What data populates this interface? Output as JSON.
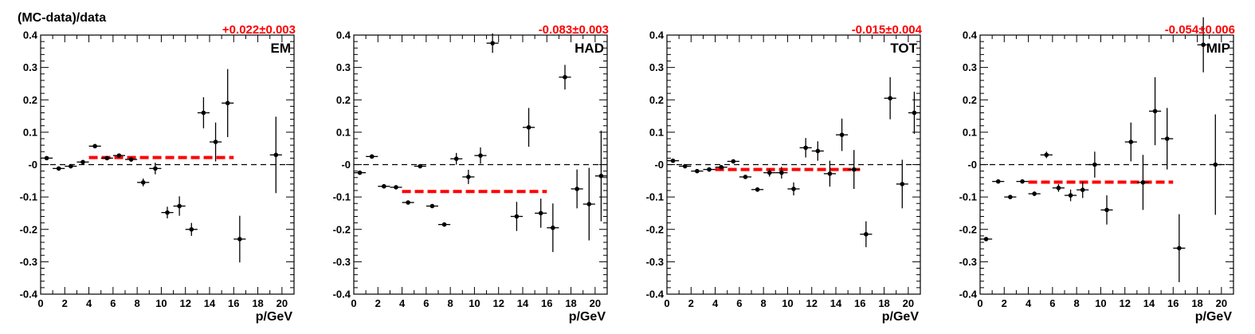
{
  "figure": {
    "title": "(MC-data)/data"
  },
  "chart_data": [
    {
      "type": "scatter",
      "label": "EM",
      "fit_value": "+0.022",
      "fit_error": "0.003",
      "fit_text": "+0.022±0.003",
      "fit_line": {
        "y": 0.022,
        "x_range": [
          4,
          16
        ]
      },
      "xlabel": "p/GeV",
      "ylabel": "",
      "xlim": [
        0,
        21
      ],
      "ylim": [
        -0.4,
        0.4
      ],
      "xticks": [
        "0",
        "2",
        "4",
        "6",
        "8",
        "10",
        "12",
        "14",
        "16",
        "18",
        "20"
      ],
      "yticks": [
        "-0.4",
        "-0.3",
        "-0.2",
        "-0.1",
        "-0",
        "0.1",
        "0.2",
        "0.3",
        "0.4"
      ],
      "reference_line": 0,
      "points": [
        {
          "x": 0.5,
          "y": 0.02,
          "err": 0.005
        },
        {
          "x": 1.5,
          "y": -0.012,
          "err": 0.005
        },
        {
          "x": 2.5,
          "y": -0.005,
          "err": 0.005
        },
        {
          "x": 3.5,
          "y": 0.008,
          "err": 0.006
        },
        {
          "x": 4.5,
          "y": 0.057,
          "err": 0.005
        },
        {
          "x": 5.5,
          "y": 0.02,
          "err": 0.005
        },
        {
          "x": 6.5,
          "y": 0.028,
          "err": 0.005
        },
        {
          "x": 7.5,
          "y": 0.016,
          "err": 0.007
        },
        {
          "x": 8.5,
          "y": -0.055,
          "err": 0.012
        },
        {
          "x": 9.5,
          "y": -0.012,
          "err": 0.018
        },
        {
          "x": 10.5,
          "y": -0.148,
          "err": 0.018
        },
        {
          "x": 11.5,
          "y": -0.128,
          "err": 0.03
        },
        {
          "x": 12.5,
          "y": -0.2,
          "err": 0.02
        },
        {
          "x": 13.5,
          "y": 0.16,
          "err": 0.048
        },
        {
          "x": 14.5,
          "y": 0.07,
          "err": 0.06
        },
        {
          "x": 15.5,
          "y": 0.19,
          "err": 0.105
        },
        {
          "x": 16.5,
          "y": -0.23,
          "err": 0.072
        },
        {
          "x": 19.5,
          "y": 0.03,
          "err": 0.118
        }
      ]
    },
    {
      "type": "scatter",
      "label": "HAD",
      "fit_value": "-0.083",
      "fit_error": "0.003",
      "fit_text": "-0.083±0.003",
      "fit_line": {
        "y": -0.083,
        "x_range": [
          4,
          16
        ]
      },
      "xlabel": "p/GeV",
      "ylabel": "",
      "xlim": [
        0,
        21
      ],
      "ylim": [
        -0.4,
        0.4
      ],
      "xticks": [
        "0",
        "2",
        "4",
        "6",
        "8",
        "10",
        "12",
        "14",
        "16",
        "18",
        "20"
      ],
      "yticks": [
        "-0.4",
        "-0.3",
        "-0.2",
        "-0.1",
        "-0",
        "0.1",
        "0.2",
        "0.3",
        "0.4"
      ],
      "reference_line": 0,
      "points": [
        {
          "x": 0.5,
          "y": -0.025,
          "err": 0.005
        },
        {
          "x": 1.5,
          "y": 0.025,
          "err": 0.005
        },
        {
          "x": 2.5,
          "y": -0.067,
          "err": 0.005
        },
        {
          "x": 3.5,
          "y": -0.07,
          "err": 0.005
        },
        {
          "x": 4.5,
          "y": -0.117,
          "err": 0.005
        },
        {
          "x": 5.5,
          "y": -0.005,
          "err": 0.005
        },
        {
          "x": 6.5,
          "y": -0.128,
          "err": 0.005
        },
        {
          "x": 7.5,
          "y": -0.185,
          "err": 0.006
        },
        {
          "x": 8.5,
          "y": 0.018,
          "err": 0.018
        },
        {
          "x": 9.5,
          "y": -0.038,
          "err": 0.022
        },
        {
          "x": 10.5,
          "y": 0.028,
          "err": 0.025
        },
        {
          "x": 11.5,
          "y": 0.375,
          "err": 0.03
        },
        {
          "x": 13.5,
          "y": -0.16,
          "err": 0.045
        },
        {
          "x": 14.5,
          "y": 0.115,
          "err": 0.06
        },
        {
          "x": 15.5,
          "y": -0.15,
          "err": 0.045
        },
        {
          "x": 16.5,
          "y": -0.195,
          "err": 0.075
        },
        {
          "x": 17.5,
          "y": 0.27,
          "err": 0.038
        },
        {
          "x": 18.5,
          "y": -0.075,
          "err": 0.06
        },
        {
          "x": 19.5,
          "y": -0.122,
          "err": 0.112
        },
        {
          "x": 20.5,
          "y": -0.035,
          "err": 0.14
        }
      ]
    },
    {
      "type": "scatter",
      "label": "TOT",
      "fit_value": "-0.015",
      "fit_error": "0.004",
      "fit_text": "-0.015±0.004",
      "fit_line": {
        "y": -0.015,
        "x_range": [
          4,
          16
        ]
      },
      "xlabel": "p/GeV",
      "ylabel": "",
      "xlim": [
        0,
        21
      ],
      "ylim": [
        -0.4,
        0.4
      ],
      "xticks": [
        "0",
        "2",
        "4",
        "6",
        "8",
        "10",
        "12",
        "14",
        "16",
        "18",
        "20"
      ],
      "yticks": [
        "-0.4",
        "-0.3",
        "-0.2",
        "-0.1",
        "-0",
        "0.1",
        "0.2",
        "0.3",
        "0.4"
      ],
      "reference_line": 0,
      "points": [
        {
          "x": 0.5,
          "y": 0.012,
          "err": 0.006
        },
        {
          "x": 1.5,
          "y": -0.005,
          "err": 0.005
        },
        {
          "x": 2.5,
          "y": -0.02,
          "err": 0.005
        },
        {
          "x": 3.5,
          "y": -0.015,
          "err": 0.005
        },
        {
          "x": 4.5,
          "y": -0.008,
          "err": 0.006
        },
        {
          "x": 5.5,
          "y": 0.01,
          "err": 0.006
        },
        {
          "x": 6.5,
          "y": -0.038,
          "err": 0.006
        },
        {
          "x": 7.5,
          "y": -0.077,
          "err": 0.007
        },
        {
          "x": 8.5,
          "y": -0.025,
          "err": 0.012
        },
        {
          "x": 9.5,
          "y": -0.025,
          "err": 0.018
        },
        {
          "x": 10.5,
          "y": -0.075,
          "err": 0.02
        },
        {
          "x": 11.5,
          "y": 0.052,
          "err": 0.03
        },
        {
          "x": 12.5,
          "y": 0.042,
          "err": 0.03
        },
        {
          "x": 13.5,
          "y": -0.028,
          "err": 0.04
        },
        {
          "x": 14.5,
          "y": 0.092,
          "err": 0.05
        },
        {
          "x": 15.5,
          "y": -0.015,
          "err": 0.06
        },
        {
          "x": 16.5,
          "y": -0.215,
          "err": 0.04
        },
        {
          "x": 18.5,
          "y": 0.205,
          "err": 0.065
        },
        {
          "x": 19.5,
          "y": -0.06,
          "err": 0.075
        },
        {
          "x": 20.5,
          "y": 0.16,
          "err": 0.065
        }
      ]
    },
    {
      "type": "scatter",
      "label": "MIP",
      "fit_value": "-0.054",
      "fit_error": "0.006",
      "fit_text": "-0.054±0.006",
      "fit_line": {
        "y": -0.054,
        "x_range": [
          4,
          16
        ]
      },
      "xlabel": "p/GeV",
      "ylabel": "",
      "xlim": [
        0,
        21
      ],
      "ylim": [
        -0.4,
        0.4
      ],
      "xticks": [
        "0",
        "2",
        "4",
        "6",
        "8",
        "10",
        "12",
        "14",
        "16",
        "18",
        "20"
      ],
      "yticks": [
        "-0.4",
        "-0.3",
        "-0.2",
        "-0.1",
        "-0",
        "0.1",
        "0.2",
        "0.3",
        "0.4"
      ],
      "reference_line": 0,
      "points": [
        {
          "x": 0.5,
          "y": -0.23,
          "err": 0.005
        },
        {
          "x": 1.5,
          "y": -0.052,
          "err": 0.005
        },
        {
          "x": 2.5,
          "y": -0.1,
          "err": 0.006
        },
        {
          "x": 3.5,
          "y": -0.052,
          "err": 0.006
        },
        {
          "x": 4.5,
          "y": -0.09,
          "err": 0.007
        },
        {
          "x": 5.5,
          "y": 0.03,
          "err": 0.01
        },
        {
          "x": 6.5,
          "y": -0.072,
          "err": 0.012
        },
        {
          "x": 7.5,
          "y": -0.095,
          "err": 0.018
        },
        {
          "x": 8.5,
          "y": -0.078,
          "err": 0.025
        },
        {
          "x": 9.5,
          "y": 0.0,
          "err": 0.04
        },
        {
          "x": 10.5,
          "y": -0.14,
          "err": 0.045
        },
        {
          "x": 12.5,
          "y": 0.07,
          "err": 0.06
        },
        {
          "x": 13.5,
          "y": -0.055,
          "err": 0.085
        },
        {
          "x": 14.5,
          "y": 0.165,
          "err": 0.105
        },
        {
          "x": 15.5,
          "y": 0.08,
          "err": 0.095
        },
        {
          "x": 16.5,
          "y": -0.258,
          "err": 0.105
        },
        {
          "x": 18.5,
          "y": 0.37,
          "err": 0.085
        },
        {
          "x": 19.5,
          "y": 0.0,
          "err": 0.155
        }
      ]
    }
  ]
}
